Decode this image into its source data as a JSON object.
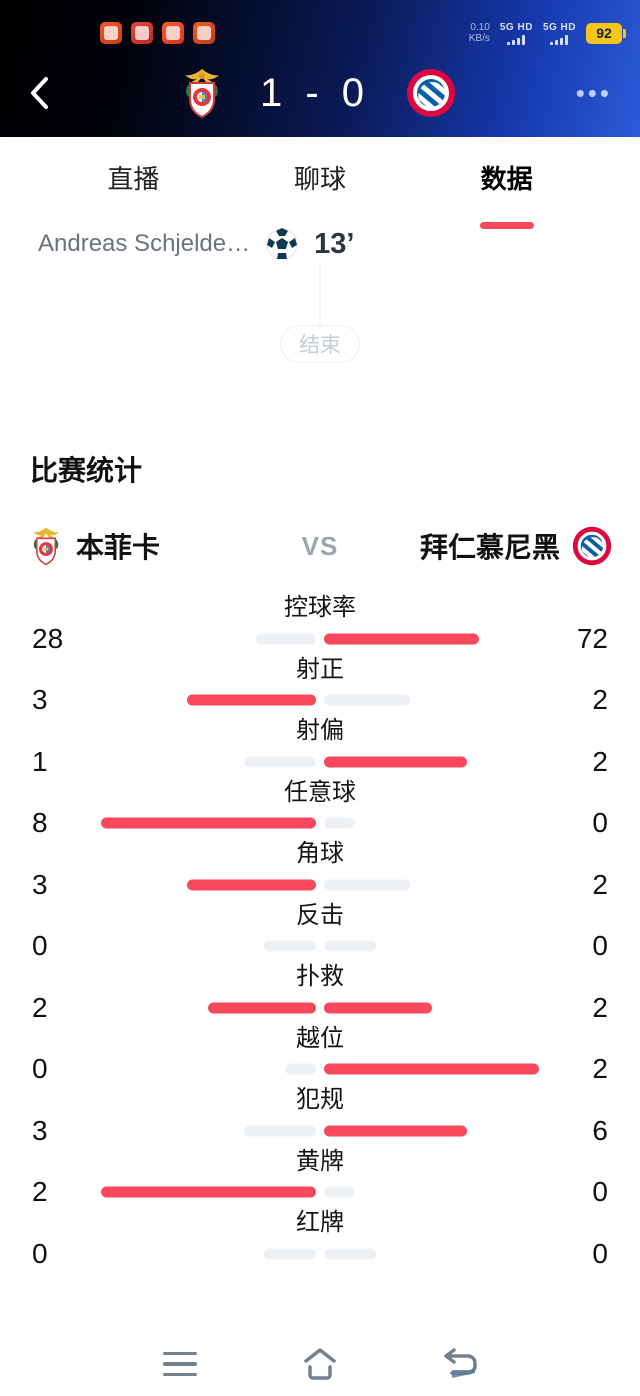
{
  "colors": {
    "highlight": "#f8485c",
    "muted": "#edf0f4",
    "tab_underline": "#f8485c"
  },
  "status_bar": {
    "net_speed_line1": "0.10",
    "net_speed_line2": "KB/s",
    "sim1_label": "5G HD",
    "sim2_label": "5G HD",
    "battery_percent": "92",
    "notification_icons": [
      "news-app-icon",
      "toutiao-app-icon",
      "kuaishou-app-icon",
      "video-app-icon"
    ]
  },
  "header": {
    "score": "1 - 0",
    "home_logo": "benfica-crest",
    "away_logo": "bayern-munich-crest",
    "more_label": "•••"
  },
  "tabs": [
    {
      "label": "直播",
      "active": false
    },
    {
      "label": "聊球",
      "active": false
    },
    {
      "label": "数据",
      "active": true
    }
  ],
  "events": [
    {
      "player": "Andreas Schjelde…",
      "icon": "goal-ball-icon",
      "minute": "13’"
    }
  ],
  "match_end_label": "结束",
  "stats_section": {
    "title": "比赛统计",
    "home_team": "本菲卡",
    "away_team": "拜仁慕尼黑",
    "vs_label": "VS"
  },
  "chart_data": {
    "type": "bar",
    "title": "比赛统计",
    "orientation": "horizontal-paired",
    "teams": [
      "本菲卡",
      "拜仁慕尼黑"
    ],
    "rows": [
      {
        "label": "控球率",
        "home": 28,
        "away": 72
      },
      {
        "label": "射正",
        "home": 3,
        "away": 2
      },
      {
        "label": "射偏",
        "home": 1,
        "away": 2
      },
      {
        "label": "任意球",
        "home": 8,
        "away": 0
      },
      {
        "label": "角球",
        "home": 3,
        "away": 2
      },
      {
        "label": "反击",
        "home": 0,
        "away": 0
      },
      {
        "label": "扑救",
        "home": 2,
        "away": 2
      },
      {
        "label": "越位",
        "home": 0,
        "away": 2
      },
      {
        "label": "犯规",
        "home": 3,
        "away": 6
      },
      {
        "label": "黄牌",
        "home": 2,
        "away": 0
      },
      {
        "label": "红牌",
        "home": 0,
        "away": 0
      }
    ],
    "legend": "higher value shown as red bar, lower/zero as light gray stub"
  },
  "bottom_nav": [
    "menu",
    "home",
    "back"
  ]
}
